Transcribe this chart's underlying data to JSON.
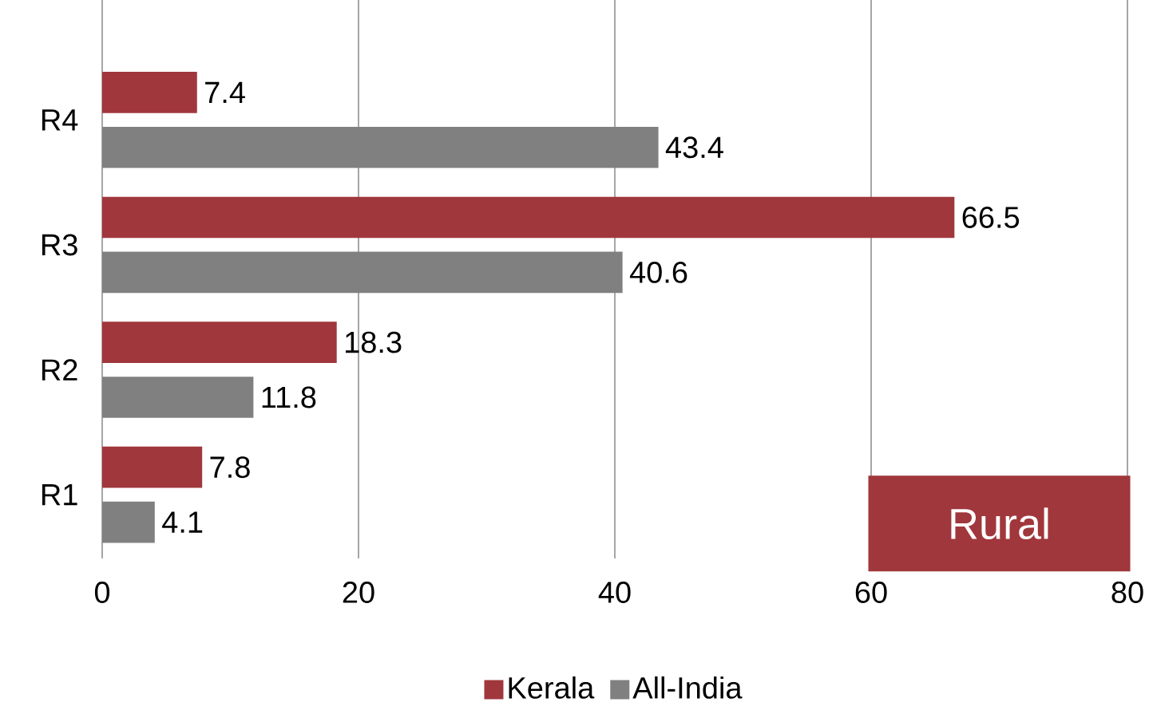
{
  "chart_data": {
    "type": "bar",
    "orientation": "horizontal",
    "categories": [
      "R4",
      "R3",
      "R2",
      "R1"
    ],
    "series": [
      {
        "name": "Kerala",
        "color": "#a0373c",
        "values": [
          7.4,
          66.5,
          18.3,
          7.8
        ]
      },
      {
        "name": "All-India",
        "color": "#808080",
        "values": [
          43.4,
          40.6,
          11.8,
          4.1
        ]
      }
    ],
    "xlim": [
      0,
      80
    ],
    "xticks": [
      0,
      20,
      40,
      60,
      80
    ],
    "grid": "x",
    "legend": "bottom",
    "data_labels": true,
    "annotations": [
      "Rural"
    ]
  }
}
